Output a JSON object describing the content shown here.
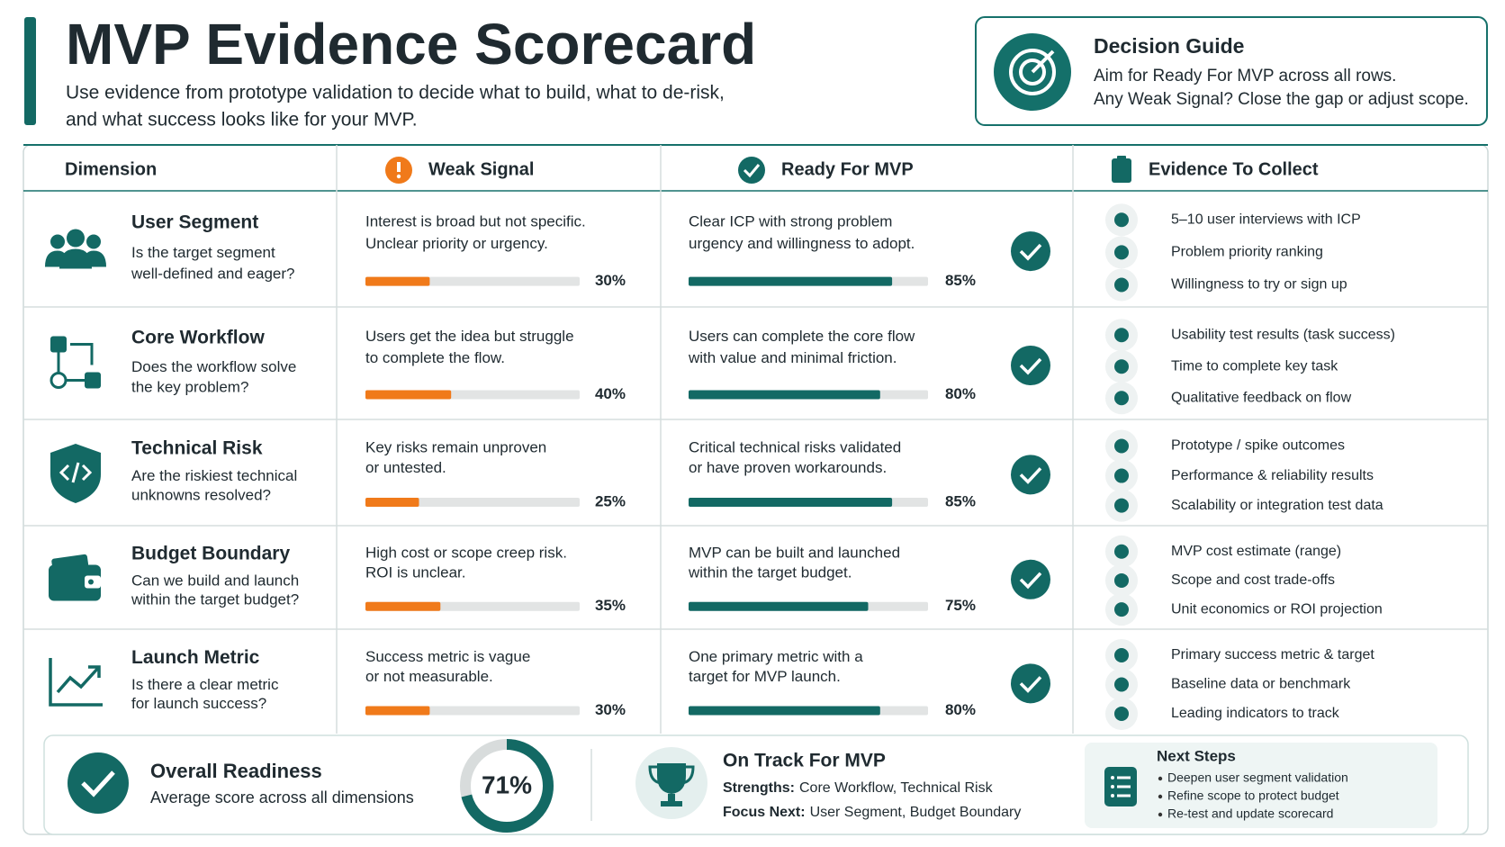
{
  "header": {
    "title": "MVP Evidence Scorecard",
    "subtitle_lines": [
      "Use evidence from prototype validation to decide what to build, what to de-risk,",
      "and what success looks like for your MVP."
    ]
  },
  "decision_guide": {
    "title": "Decision Guide",
    "lines": [
      "Aim for Ready For MVP across all rows.",
      "Any Weak Signal? Close the gap or adjust scope."
    ]
  },
  "table": {
    "columns": [
      "Dimension",
      "Weak Signal",
      "Ready For MVP",
      "Evidence To Collect"
    ],
    "rows": [
      {
        "dimension": "User Segment",
        "question": [
          "Is the target segment",
          "well-defined and eager?"
        ],
        "weak_text": [
          "Interest is broad but not specific.",
          "Unclear priority or urgency."
        ],
        "weak_score": 30,
        "weak_label": "30%",
        "ready_text": [
          "Clear ICP with strong problem",
          "urgency and willingness to adopt."
        ],
        "ready_score": 85,
        "ready_label": "85%",
        "evidence": [
          "5–10 user interviews with ICP",
          "Problem priority ranking",
          "Willingness to try or sign up"
        ]
      },
      {
        "dimension": "Core Workflow",
        "question": [
          "Does the workflow solve",
          "the key problem?"
        ],
        "weak_text": [
          "Users get the idea but struggle",
          "to complete the flow."
        ],
        "weak_score": 40,
        "weak_label": "40%",
        "ready_text": [
          "Users can complete the core flow",
          "with value and minimal friction."
        ],
        "ready_score": 80,
        "ready_label": "80%",
        "evidence": [
          "Usability test results (task success)",
          "Time to complete key task",
          "Qualitative feedback on flow"
        ]
      },
      {
        "dimension": "Technical Risk",
        "question": [
          "Are the riskiest technical",
          "unknowns resolved?"
        ],
        "weak_text": [
          "Key risks remain unproven",
          "or untested."
        ],
        "weak_score": 25,
        "weak_label": "25%",
        "ready_text": [
          "Critical technical risks validated",
          "or have proven workarounds."
        ],
        "ready_score": 85,
        "ready_label": "85%",
        "evidence": [
          "Prototype / spike outcomes",
          "Performance & reliability results",
          "Scalability or integration test data"
        ]
      },
      {
        "dimension": "Budget Boundary",
        "question": [
          "Can we build and launch",
          "within the target budget?"
        ],
        "weak_text": [
          "High cost or scope creep risk.",
          "ROI is unclear."
        ],
        "weak_score": 35,
        "weak_label": "35%",
        "ready_text": [
          "MVP can be built and launched",
          "within the target budget."
        ],
        "ready_score": 75,
        "ready_label": "75%",
        "evidence": [
          "MVP cost estimate (range)",
          "Scope and cost trade-offs",
          "Unit economics or ROI projection"
        ]
      },
      {
        "dimension": "Launch Metric",
        "question": [
          "Is there a clear metric",
          "for launch success?"
        ],
        "weak_text": [
          "Success metric is vague",
          "or not measurable."
        ],
        "weak_score": 30,
        "weak_label": "30%",
        "ready_text": [
          "One primary metric with a",
          "target for MVP launch."
        ],
        "ready_score": 80,
        "ready_label": "80%",
        "evidence": [
          "Primary success metric & target",
          "Baseline data or benchmark",
          "Leading indicators to track"
        ]
      }
    ]
  },
  "summary": {
    "title": "Overall Readiness",
    "description": "Average score across all dimensions",
    "readiness": 71,
    "readiness_label": "71%",
    "status_title": "On Track For MVP",
    "strengths_label": "Strengths:",
    "strengths": "Core Workflow, Technical Risk",
    "focus_label": "Focus Next:",
    "focus": "User Segment, Budget Boundary",
    "next_steps_title": "Next Steps",
    "next_steps": [
      "Deepen user segment validation",
      "Refine scope to protect budget",
      "Re-test and update scorecard"
    ]
  }
}
